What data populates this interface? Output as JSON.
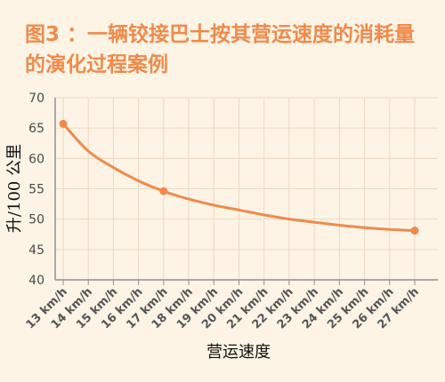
{
  "colors": {
    "background": "#fdf4e6",
    "title": "#f08a4b",
    "line": "#f08a4b",
    "grid": "#ead9c2",
    "axis": "#8f8f8f"
  },
  "chart_data": {
    "type": "line",
    "title": "图3 ：一辆铰接巴士按其营运速度的消耗量的演化过程案例",
    "xlabel": "营运速度",
    "ylabel": "升/100 公里",
    "categories": [
      "13 km/h",
      "14 km/h",
      "15 km/h",
      "16 km/h",
      "17 km/h",
      "18 km/h",
      "19 km/h",
      "20 km/h",
      "21 km/h",
      "22 km/h",
      "23 km/h",
      "24 km/h",
      "25 km/h",
      "26 km/h",
      "27 km/h"
    ],
    "series": [
      {
        "values": [
          65.7,
          61.2,
          58.5,
          56.3,
          54.6,
          53.3,
          52.3,
          51.5,
          50.7,
          50.0,
          49.5,
          49.0,
          48.6,
          48.3,
          48.1
        ]
      }
    ],
    "markers": [
      0,
      4,
      14
    ],
    "yticks": [
      40,
      45,
      50,
      55,
      60,
      65,
      70
    ],
    "ylim": [
      40,
      70
    ],
    "grid": true,
    "legend": "none"
  }
}
